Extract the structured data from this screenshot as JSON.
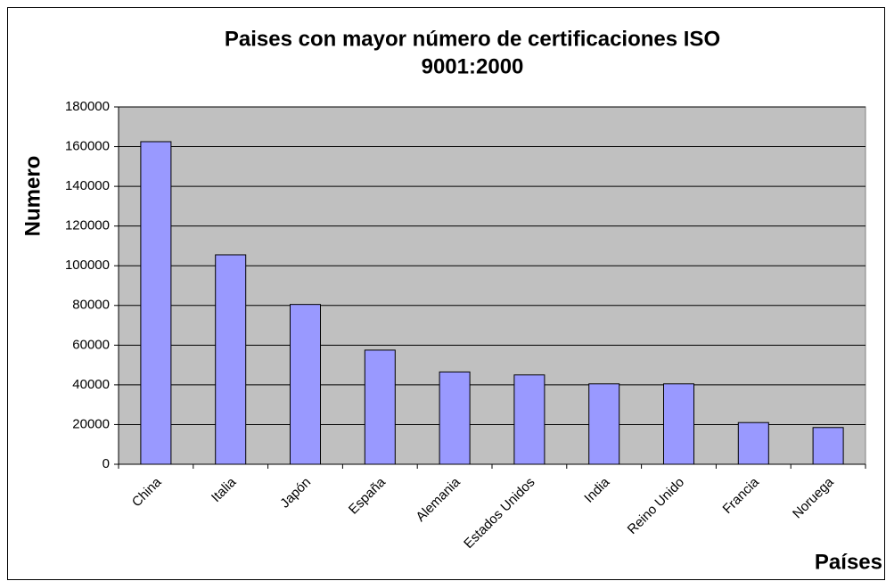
{
  "chart_data": {
    "type": "bar",
    "title": [
      "Paises con mayor número de certificaciones ISO",
      "9001:2000"
    ],
    "y_label": "Numero",
    "x_label": "Países",
    "categories": [
      "China",
      "Italia",
      "Japón",
      "España",
      "Alemania",
      "Estados Unidos",
      "India",
      "Reino Unido",
      "Francia",
      "Noruega"
    ],
    "values": [
      162500,
      105500,
      80500,
      57500,
      46500,
      45000,
      40500,
      40500,
      21000,
      18500
    ],
    "color": "#9999ff",
    "plot_background": "#c0c0c0",
    "ylim": [
      0,
      180000
    ],
    "yticks": [
      0,
      20000,
      40000,
      60000,
      80000,
      100000,
      120000,
      140000,
      160000,
      180000
    ],
    "grid": true
  }
}
